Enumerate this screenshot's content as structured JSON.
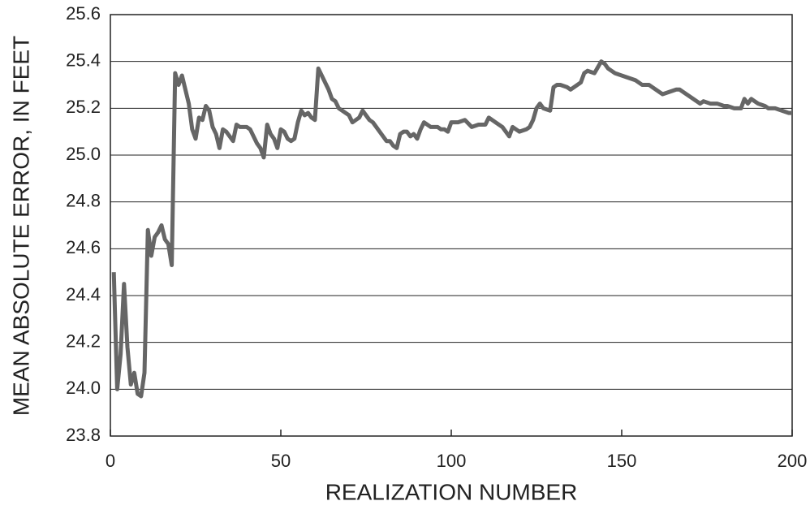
{
  "chart_data": {
    "type": "line",
    "xlabel": "REALIZATION NUMBER",
    "ylabel": "MEAN ABSOLUTE ERROR, IN FEET",
    "x": [
      1,
      2,
      3,
      4,
      5,
      6,
      7,
      8,
      9,
      10,
      11,
      12,
      13,
      14,
      15,
      16,
      17,
      18,
      19,
      20,
      21,
      22,
      23,
      24,
      25,
      26,
      27,
      28,
      29,
      30,
      31,
      32,
      33,
      34,
      35,
      36,
      37,
      38,
      39,
      40,
      41,
      42,
      43,
      44,
      45,
      46,
      47,
      48,
      49,
      50,
      51,
      52,
      53,
      54,
      55,
      56,
      57,
      58,
      59,
      60,
      61,
      62,
      63,
      64,
      65,
      66,
      67,
      68,
      69,
      70,
      71,
      72,
      73,
      74,
      75,
      76,
      77,
      78,
      79,
      80,
      81,
      82,
      83,
      84,
      85,
      86,
      87,
      88,
      89,
      90,
      91,
      92,
      93,
      94,
      95,
      96,
      97,
      98,
      99,
      100,
      102,
      104,
      106,
      108,
      110,
      111,
      113,
      115,
      117,
      118,
      120,
      122,
      123,
      124,
      125,
      126,
      127,
      129,
      130,
      131,
      132,
      134,
      135,
      136,
      138,
      139,
      140,
      142,
      144,
      145,
      146,
      148,
      150,
      152,
      154,
      156,
      158,
      160,
      162,
      164,
      166,
      167,
      168,
      170,
      172,
      173,
      174,
      176,
      178,
      180,
      181,
      183,
      185,
      186,
      187,
      188,
      190,
      192,
      193,
      195,
      197,
      199,
      200
    ],
    "series": [
      {
        "color": "#666666",
        "values": [
          24.5,
          24.0,
          24.15,
          24.45,
          24.18,
          24.02,
          24.07,
          23.98,
          23.97,
          24.07,
          24.68,
          24.57,
          24.65,
          24.67,
          24.7,
          24.64,
          24.62,
          24.53,
          25.35,
          25.3,
          25.34,
          25.28,
          25.22,
          25.11,
          25.07,
          25.16,
          25.15,
          25.21,
          25.19,
          25.12,
          25.09,
          25.03,
          25.11,
          25.1,
          25.08,
          25.06,
          25.13,
          25.12,
          25.12,
          25.12,
          25.11,
          25.08,
          25.05,
          25.03,
          24.99,
          25.13,
          25.09,
          25.07,
          25.03,
          25.11,
          25.1,
          25.07,
          25.06,
          25.07,
          25.14,
          25.19,
          25.17,
          25.18,
          25.16,
          25.15,
          25.37,
          25.34,
          25.31,
          25.28,
          25.24,
          25.23,
          25.2,
          25.19,
          25.18,
          25.17,
          25.14,
          25.15,
          25.16,
          25.19,
          25.17,
          25.15,
          25.14,
          25.12,
          25.1,
          25.08,
          25.06,
          25.06,
          25.04,
          25.03,
          25.09,
          25.1,
          25.1,
          25.08,
          25.09,
          25.07,
          25.11,
          25.14,
          25.13,
          25.12,
          25.12,
          25.12,
          25.11,
          25.11,
          25.1,
          25.14,
          25.14,
          25.15,
          25.12,
          25.13,
          25.13,
          25.16,
          25.14,
          25.12,
          25.08,
          25.12,
          25.1,
          25.11,
          25.12,
          25.15,
          25.2,
          25.22,
          25.2,
          25.19,
          25.29,
          25.3,
          25.3,
          25.29,
          25.28,
          25.29,
          25.31,
          25.35,
          25.36,
          25.35,
          25.4,
          25.39,
          25.37,
          25.35,
          25.34,
          25.33,
          25.32,
          25.3,
          25.3,
          25.28,
          25.26,
          25.27,
          25.28,
          25.28,
          25.27,
          25.25,
          25.23,
          25.22,
          25.23,
          25.22,
          25.22,
          25.21,
          25.21,
          25.2,
          25.2,
          25.24,
          25.22,
          25.24,
          25.22,
          25.21,
          25.2,
          25.2,
          25.19,
          25.18,
          25.18
        ]
      }
    ],
    "xlim": [
      0,
      200
    ],
    "xticks": [
      0,
      50,
      100,
      150,
      200
    ],
    "ylim": [
      23.8,
      25.6
    ],
    "yticks": [
      23.8,
      {
        "value": 24.0,
        "label": "24.0"
      },
      24.2,
      24.4,
      24.6,
      24.8,
      {
        "value": 25.0,
        "label": "25.0"
      },
      25.2,
      25.4,
      25.6
    ],
    "grid": true
  }
}
